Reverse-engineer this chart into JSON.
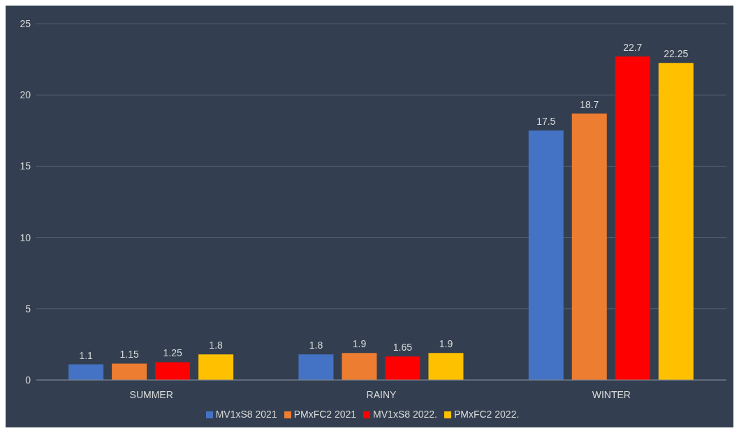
{
  "chart_data": {
    "type": "bar",
    "categories": [
      "SUMMER",
      "RAINY",
      "WINTER"
    ],
    "series": [
      {
        "name": "MV1xS8 2021",
        "color": "#4472c4",
        "values": [
          1.1,
          1.8,
          17.5
        ]
      },
      {
        "name": "PMxFC2 2021",
        "color": "#ed7d31",
        "values": [
          1.15,
          1.9,
          18.7
        ]
      },
      {
        "name": "MV1xS8 2022.",
        "color": "#ff0000",
        "values": [
          1.25,
          1.65,
          22.7
        ]
      },
      {
        "name": "PMxFC2 2022.",
        "color": "#ffc000",
        "values": [
          1.8,
          1.9,
          22.25
        ]
      }
    ],
    "ylim": [
      0,
      25
    ],
    "yticks": [
      0,
      5,
      10,
      15,
      20,
      25
    ],
    "grid": "y",
    "legend": "bottom",
    "data_labels": true
  }
}
